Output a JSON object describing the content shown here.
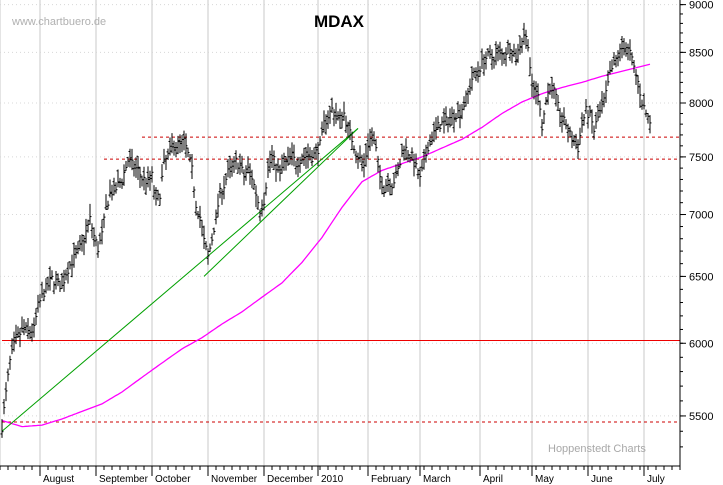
{
  "chart_data": {
    "type": "ohlc",
    "title": "MDAX",
    "watermark": "www.chartbuero.de",
    "credit": "Hoppenstedt Charts",
    "y_scale": "log",
    "ylim": [
      5180,
      9050
    ],
    "y_ticks": [
      5500,
      6000,
      6500,
      7000,
      7500,
      8000,
      8500,
      9000
    ],
    "x_labels": [
      "August",
      "September",
      "October",
      "November",
      "December",
      "2010",
      "February",
      "March",
      "April",
      "May",
      "June",
      "July"
    ],
    "grid": true,
    "series": [
      {
        "kind": "price-bars",
        "anchors": [
          [
            0,
            5430
          ],
          [
            4,
            5650
          ],
          [
            8,
            5870
          ],
          [
            12,
            5980
          ],
          [
            16,
            6050
          ],
          [
            22,
            6110
          ],
          [
            26,
            6080
          ],
          [
            32,
            6100
          ],
          [
            36,
            6270
          ],
          [
            42,
            6380
          ],
          [
            50,
            6480
          ],
          [
            56,
            6450
          ],
          [
            60,
            6420
          ],
          [
            64,
            6530
          ],
          [
            70,
            6620
          ],
          [
            76,
            6690
          ],
          [
            82,
            6800
          ],
          [
            88,
            6960
          ],
          [
            92,
            6820
          ],
          [
            96,
            6720
          ],
          [
            100,
            6830
          ],
          [
            104,
            7050
          ],
          [
            108,
            7180
          ],
          [
            114,
            7220
          ],
          [
            120,
            7300
          ],
          [
            126,
            7470
          ],
          [
            130,
            7430
          ],
          [
            136,
            7380
          ],
          [
            140,
            7310
          ],
          [
            146,
            7280
          ],
          [
            150,
            7330
          ],
          [
            154,
            7100
          ],
          [
            158,
            7180
          ],
          [
            162,
            7440
          ],
          [
            166,
            7510
          ],
          [
            170,
            7600
          ],
          [
            176,
            7610
          ],
          [
            182,
            7640
          ],
          [
            186,
            7520
          ],
          [
            190,
            7380
          ],
          [
            194,
            7090
          ],
          [
            198,
            6980
          ],
          [
            202,
            6780
          ],
          [
            206,
            6650
          ],
          [
            210,
            6800
          ],
          [
            214,
            6980
          ],
          [
            218,
            7180
          ],
          [
            222,
            7250
          ],
          [
            226,
            7360
          ],
          [
            230,
            7400
          ],
          [
            234,
            7460
          ],
          [
            238,
            7420
          ],
          [
            242,
            7330
          ],
          [
            246,
            7390
          ],
          [
            250,
            7320
          ],
          [
            254,
            7180
          ],
          [
            258,
            7040
          ],
          [
            262,
            7120
          ],
          [
            266,
            7400
          ],
          [
            270,
            7500
          ],
          [
            274,
            7420
          ],
          [
            278,
            7360
          ],
          [
            282,
            7440
          ],
          [
            286,
            7470
          ],
          [
            290,
            7510
          ],
          [
            294,
            7440
          ],
          [
            298,
            7480
          ],
          [
            302,
            7500
          ],
          [
            306,
            7520
          ],
          [
            310,
            7500
          ],
          [
            314,
            7540
          ],
          [
            318,
            7610
          ],
          [
            322,
            7800
          ],
          [
            326,
            7880
          ],
          [
            330,
            7940
          ],
          [
            334,
            7880
          ],
          [
            338,
            7850
          ],
          [
            342,
            7900
          ],
          [
            346,
            7760
          ],
          [
            350,
            7660
          ],
          [
            354,
            7540
          ],
          [
            358,
            7480
          ],
          [
            362,
            7420
          ],
          [
            366,
            7620
          ],
          [
            370,
            7700
          ],
          [
            374,
            7560
          ],
          [
            378,
            7320
          ],
          [
            382,
            7220
          ],
          [
            386,
            7300
          ],
          [
            390,
            7260
          ],
          [
            394,
            7320
          ],
          [
            398,
            7440
          ],
          [
            402,
            7600
          ],
          [
            406,
            7540
          ],
          [
            410,
            7500
          ],
          [
            414,
            7400
          ],
          [
            418,
            7300
          ],
          [
            422,
            7440
          ],
          [
            426,
            7600
          ],
          [
            430,
            7680
          ],
          [
            434,
            7750
          ],
          [
            438,
            7800
          ],
          [
            442,
            7810
          ],
          [
            446,
            7840
          ],
          [
            450,
            7880
          ],
          [
            454,
            7900
          ],
          [
            458,
            7920
          ],
          [
            462,
            7990
          ],
          [
            466,
            8100
          ],
          [
            470,
            8240
          ],
          [
            474,
            8300
          ],
          [
            478,
            8350
          ],
          [
            482,
            8430
          ],
          [
            486,
            8460
          ],
          [
            490,
            8430
          ],
          [
            494,
            8480
          ],
          [
            498,
            8500
          ],
          [
            502,
            8460
          ],
          [
            506,
            8560
          ],
          [
            510,
            8520
          ],
          [
            514,
            8440
          ],
          [
            518,
            8580
          ],
          [
            522,
            8690
          ],
          [
            526,
            8600
          ],
          [
            530,
            8120
          ],
          [
            534,
            8130
          ],
          [
            538,
            7980
          ],
          [
            540,
            7780
          ],
          [
            544,
            8020
          ],
          [
            548,
            8160
          ],
          [
            552,
            8110
          ],
          [
            556,
            7960
          ],
          [
            560,
            7840
          ],
          [
            564,
            7800
          ],
          [
            568,
            7700
          ],
          [
            572,
            7640
          ],
          [
            576,
            7580
          ],
          [
            580,
            7800
          ],
          [
            584,
            7920
          ],
          [
            588,
            7880
          ],
          [
            592,
            7740
          ],
          [
            596,
            7860
          ],
          [
            600,
            7960
          ],
          [
            604,
            8080
          ],
          [
            608,
            8280
          ],
          [
            612,
            8380
          ],
          [
            616,
            8470
          ],
          [
            620,
            8540
          ],
          [
            624,
            8560
          ],
          [
            628,
            8490
          ],
          [
            632,
            8340
          ],
          [
            636,
            8200
          ],
          [
            640,
            8010
          ],
          [
            644,
            7900
          ],
          [
            648,
            7830
          ]
        ]
      },
      {
        "kind": "moving-average",
        "color": "#ff00ff",
        "anchors": [
          [
            0,
            5470
          ],
          [
            20,
            5430
          ],
          [
            40,
            5440
          ],
          [
            60,
            5480
          ],
          [
            80,
            5530
          ],
          [
            100,
            5580
          ],
          [
            120,
            5660
          ],
          [
            140,
            5760
          ],
          [
            160,
            5860
          ],
          [
            180,
            5960
          ],
          [
            200,
            6040
          ],
          [
            220,
            6140
          ],
          [
            240,
            6230
          ],
          [
            260,
            6340
          ],
          [
            280,
            6450
          ],
          [
            300,
            6610
          ],
          [
            320,
            6810
          ],
          [
            340,
            7060
          ],
          [
            350,
            7170
          ],
          [
            360,
            7280
          ],
          [
            380,
            7380
          ],
          [
            400,
            7440
          ],
          [
            420,
            7500
          ],
          [
            440,
            7580
          ],
          [
            460,
            7660
          ],
          [
            480,
            7770
          ],
          [
            500,
            7900
          ],
          [
            520,
            8010
          ],
          [
            540,
            8090
          ],
          [
            560,
            8150
          ],
          [
            580,
            8200
          ],
          [
            600,
            8260
          ],
          [
            620,
            8310
          ],
          [
            640,
            8360
          ],
          [
            648,
            8380
          ]
        ]
      },
      {
        "kind": "trendline",
        "color": "#00a000",
        "points": [
          [
            0,
            5400
          ],
          [
            356,
            7760
          ]
        ]
      },
      {
        "kind": "trendline",
        "color": "#00a000",
        "points": [
          [
            202,
            6500
          ],
          [
            356,
            7760
          ]
        ]
      }
    ],
    "reference_lines": [
      {
        "value": 7680,
        "style": "dashed",
        "color": "#cc0000",
        "from": 140
      },
      {
        "value": 7480,
        "style": "dashed",
        "color": "#cc0000",
        "from": 102
      },
      {
        "value": 6020,
        "style": "solid",
        "color": "#ee0000",
        "from": 0
      },
      {
        "value": 5460,
        "style": "dashed",
        "color": "#cc0000",
        "from": 0
      }
    ]
  }
}
